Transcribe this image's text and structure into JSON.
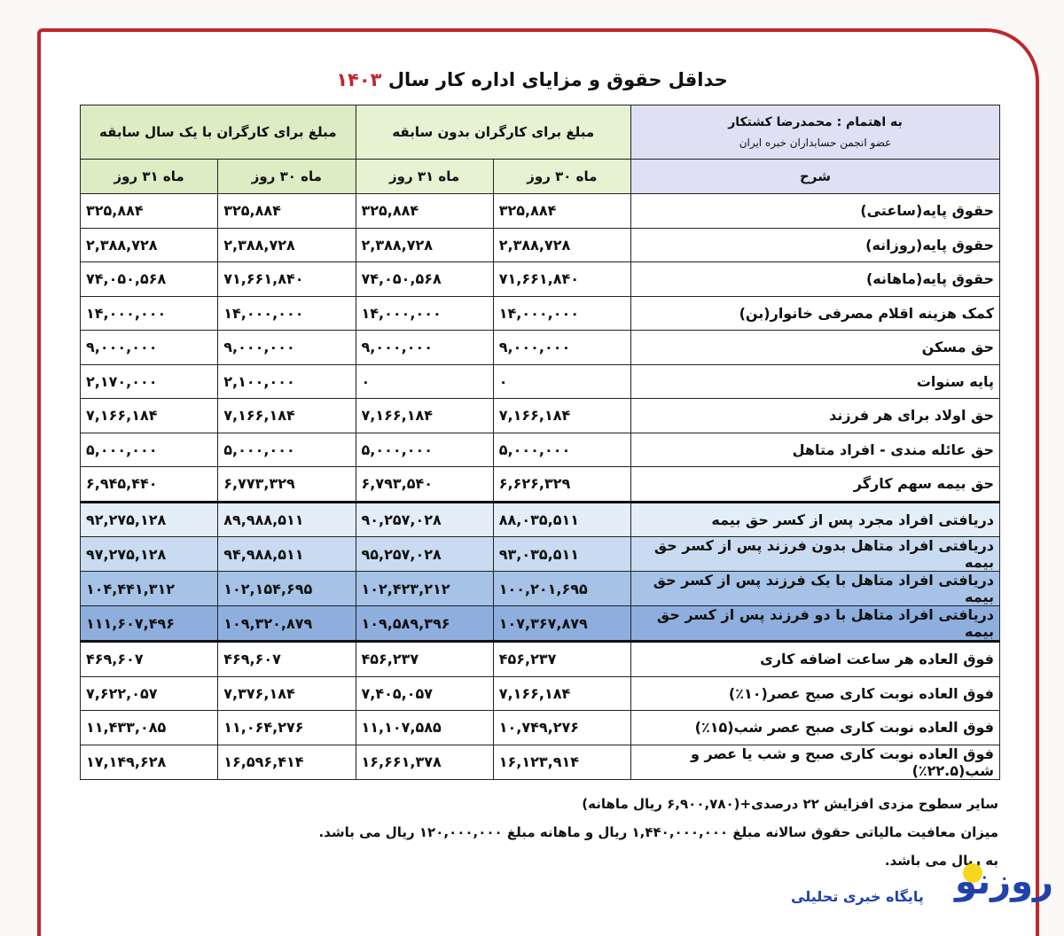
{
  "title": {
    "text": "حداقل حقوق و مزایای اداره کار سال",
    "year": "۱۴۰۳"
  },
  "credit": {
    "line1": "به اهتمام : محمدرضا کشتکار",
    "line2": "عضو انجمن حسابداران خبره ایران"
  },
  "groups": {
    "no_experience": "مبلغ برای کارگران بدون سابقه",
    "one_year": "مبلغ برای کارگران با یک سال سابقه"
  },
  "subheaders": {
    "desc": "شرح",
    "d30": "ماه ۳۰ روز",
    "d31": "ماه ۳۱ روز"
  },
  "colors": {
    "frame": "#c0262c",
    "row_blue_1": "#e4eef9",
    "row_blue_2": "#c8dbf0",
    "row_blue_3": "#a6c2e6",
    "row_blue_4": "#8eaede"
  },
  "rows": [
    {
      "label": "حقوق پایه(ساعتی)",
      "values": [
        "۳۲۵,۸۸۴",
        "۳۲۵,۸۸۴",
        "۳۲۵,۸۸۴",
        "۳۲۵,۸۸۴"
      ]
    },
    {
      "label": "حقوق پایه(روزانه)",
      "values": [
        "۲,۳۸۸,۷۲۸",
        "۲,۳۸۸,۷۲۸",
        "۲,۳۸۸,۷۲۸",
        "۲,۳۸۸,۷۲۸"
      ]
    },
    {
      "label": "حقوق پایه(ماهانه)",
      "values": [
        "۷۱,۶۶۱,۸۴۰",
        "۷۴,۰۵۰,۵۶۸",
        "۷۱,۶۶۱,۸۴۰",
        "۷۴,۰۵۰,۵۶۸"
      ]
    },
    {
      "label": "کمک هزینه اقلام مصرفی خانوار(بن)",
      "values": [
        "۱۴,۰۰۰,۰۰۰",
        "۱۴,۰۰۰,۰۰۰",
        "۱۴,۰۰۰,۰۰۰",
        "۱۴,۰۰۰,۰۰۰"
      ]
    },
    {
      "label": "حق مسکن",
      "values": [
        "۹,۰۰۰,۰۰۰",
        "۹,۰۰۰,۰۰۰",
        "۹,۰۰۰,۰۰۰",
        "۹,۰۰۰,۰۰۰"
      ]
    },
    {
      "label": "پایه سنوات",
      "values": [
        "۰",
        "۰",
        "۲,۱۰۰,۰۰۰",
        "۲,۱۷۰,۰۰۰"
      ]
    },
    {
      "label": "حق اولاد برای هر فرزند",
      "values": [
        "۷,۱۶۶,۱۸۴",
        "۷,۱۶۶,۱۸۴",
        "۷,۱۶۶,۱۸۴",
        "۷,۱۶۶,۱۸۴"
      ]
    },
    {
      "label": "حق عائله مندی - افراد متاهل",
      "values": [
        "۵,۰۰۰,۰۰۰",
        "۵,۰۰۰,۰۰۰",
        "۵,۰۰۰,۰۰۰",
        "۵,۰۰۰,۰۰۰"
      ]
    },
    {
      "label": "حق بیمه سهم کارگر",
      "values": [
        "۶,۶۲۶,۳۲۹",
        "۶,۷۹۳,۵۴۰",
        "۶,۷۷۳,۳۲۹",
        "۶,۹۴۵,۴۴۰"
      ]
    },
    {
      "label": "دریافتی افراد مجرد پس از کسر حق بیمه",
      "values": [
        "۸۸,۰۳۵,۵۱۱",
        "۹۰,۲۵۷,۰۲۸",
        "۸۹,۹۸۸,۵۱۱",
        "۹۲,۲۷۵,۱۲۸"
      ]
    },
    {
      "label": "دریافتی افراد متاهل بدون فرزند پس از کسر حق بیمه",
      "values": [
        "۹۳,۰۳۵,۵۱۱",
        "۹۵,۲۵۷,۰۲۸",
        "۹۴,۹۸۸,۵۱۱",
        "۹۷,۲۷۵,۱۲۸"
      ]
    },
    {
      "label": "دریافتی افراد متاهل با یک فرزند پس از کسر حق بیمه",
      "values": [
        "۱۰۰,۲۰۱,۶۹۵",
        "۱۰۲,۴۲۳,۲۱۲",
        "۱۰۲,۱۵۴,۶۹۵",
        "۱۰۴,۴۴۱,۳۱۲"
      ]
    },
    {
      "label": "دریافتی افراد متاهل با دو فرزند پس از کسر حق بیمه",
      "values": [
        "۱۰۷,۳۶۷,۸۷۹",
        "۱۰۹,۵۸۹,۳۹۶",
        "۱۰۹,۳۲۰,۸۷۹",
        "۱۱۱,۶۰۷,۴۹۶"
      ]
    },
    {
      "label": "فوق العاده هر ساعت اضافه کاری",
      "values": [
        "۴۵۶,۲۳۷",
        "۴۵۶,۲۳۷",
        "۴۶۹,۶۰۷",
        "۴۶۹,۶۰۷"
      ]
    },
    {
      "label": "فوق العاده نوبت کاری صبح عصر(۱۰٪)",
      "values": [
        "۷,۱۶۶,۱۸۴",
        "۷,۴۰۵,۰۵۷",
        "۷,۳۷۶,۱۸۴",
        "۷,۶۲۲,۰۵۷"
      ]
    },
    {
      "label": "فوق العاده نوبت کاری صبح عصر شب(۱۵٪)",
      "values": [
        "۱۰,۷۴۹,۲۷۶",
        "۱۱,۱۰۷,۵۸۵",
        "۱۱,۰۶۴,۲۷۶",
        "۱۱,۴۳۳,۰۸۵"
      ]
    },
    {
      "label": "فوق العاده نوبت کاری صبح و شب یا عصر و شب(۲۲.۵٪)",
      "values": [
        "۱۶,۱۲۳,۹۱۴",
        "۱۶,۶۶۱,۳۷۸",
        "۱۶,۵۹۶,۴۱۴",
        "۱۷,۱۴۹,۶۲۸"
      ]
    }
  ],
  "notes": [
    "سایر سطوح مزدی افزایش ۲۲ درصدی+(۶,۹۰۰,۷۸۰ ریال ماهانه)",
    "میزان معافیت مالیاتی حقوق سالانه مبلغ ۱,۴۴۰,۰۰۰,۰۰۰ ریال و ماهانه مبلغ ۱۲۰,۰۰۰,۰۰۰ ریال می باشد.",
    "به ریال می باشد."
  ],
  "logo": {
    "name": "روزنو",
    "tagline": "پایگاه خبری تحلیلی"
  }
}
